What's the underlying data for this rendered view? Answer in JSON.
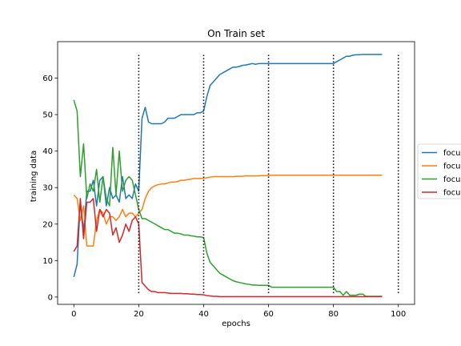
{
  "chart_data": {
    "type": "line",
    "title": "On Train set",
    "xlabel": "epochs",
    "ylabel": "training data",
    "xlim": [
      -5,
      105
    ],
    "ylim": [
      -2,
      70
    ],
    "xticks": [
      0,
      20,
      40,
      60,
      80,
      100
    ],
    "yticks": [
      0,
      10,
      20,
      30,
      40,
      50,
      60
    ],
    "grid": false,
    "legend_position": "right, partially cut off",
    "vlines": [
      20,
      40,
      60,
      80,
      100
    ],
    "x": [
      0,
      1,
      2,
      3,
      4,
      5,
      6,
      7,
      8,
      9,
      10,
      11,
      12,
      13,
      14,
      15,
      16,
      17,
      18,
      19,
      20,
      21,
      22,
      23,
      24,
      25,
      26,
      27,
      28,
      29,
      30,
      31,
      32,
      33,
      34,
      35,
      36,
      37,
      38,
      39,
      40,
      41,
      42,
      43,
      44,
      45,
      46,
      47,
      48,
      49,
      50,
      51,
      52,
      53,
      54,
      55,
      56,
      57,
      58,
      59,
      60,
      61,
      62,
      63,
      64,
      65,
      66,
      67,
      68,
      69,
      70,
      71,
      72,
      73,
      74,
      75,
      76,
      77,
      78,
      79,
      80,
      81,
      82,
      83,
      84,
      85,
      86,
      87,
      88,
      89,
      90,
      91,
      92,
      93,
      94,
      95
    ],
    "series": [
      {
        "name": "focu",
        "color": "#1f77b4",
        "values": [
          5.5,
          9,
          26,
          18,
          29,
          29,
          32,
          25,
          32,
          33,
          25,
          30,
          27,
          28,
          26,
          33,
          27,
          28,
          27,
          31,
          29,
          49,
          52,
          48,
          47.5,
          47.5,
          47.5,
          47.5,
          48,
          49,
          49,
          49,
          49.5,
          50,
          50,
          50,
          50,
          50,
          50.5,
          50.5,
          51,
          55,
          58,
          59,
          60,
          61,
          61.5,
          62,
          62.5,
          63,
          63,
          63.2,
          63.5,
          63.6,
          63.8,
          64,
          63.8,
          64,
          64,
          64,
          64,
          64,
          64,
          64,
          64,
          64,
          64,
          64,
          64,
          64,
          64,
          64,
          64,
          64,
          64,
          64,
          64,
          64,
          64,
          64,
          64,
          64.5,
          65,
          65.5,
          66,
          66,
          66.3,
          66.4,
          66.4,
          66.5,
          66.5,
          66.5,
          66.5,
          66.5,
          66.5,
          66.5
        ]
      },
      {
        "name": "focu",
        "color": "#ff7f0e",
        "values": [
          28,
          27,
          21,
          25,
          14,
          14,
          14,
          21,
          24,
          23,
          20,
          22,
          22,
          21,
          22,
          24,
          22,
          23,
          23,
          22,
          23,
          24,
          27,
          29,
          30,
          30.5,
          30.8,
          31,
          31,
          31.3,
          31.5,
          31.5,
          31.7,
          32,
          32,
          32.2,
          32.3,
          32.5,
          32.5,
          32.5,
          32.5,
          32.7,
          32.9,
          33,
          33,
          33,
          33,
          33,
          33,
          33,
          33.1,
          33.1,
          33.1,
          33.2,
          33.2,
          33.2,
          33.2,
          33.2,
          33.3,
          33.3,
          33.3,
          33.4,
          33.4,
          33.4,
          33.4,
          33.4,
          33.4,
          33.4,
          33.4,
          33.4,
          33.4,
          33.4,
          33.4,
          33.4,
          33.4,
          33.4,
          33.4,
          33.4,
          33.4,
          33.4,
          33.4,
          33.4,
          33.4,
          33.4,
          33.4,
          33.4,
          33.4,
          33.4,
          33.4,
          33.4,
          33.4,
          33.4,
          33.4,
          33.4,
          33.4,
          33.4
        ]
      },
      {
        "name": "focu",
        "color": "#2ca02c",
        "values": [
          54,
          51,
          33,
          42,
          27,
          31,
          29,
          35,
          26,
          33,
          27,
          25,
          41,
          28,
          40,
          29,
          32,
          33,
          32,
          28,
          24,
          21.5,
          21.5,
          21,
          20.5,
          20,
          19.5,
          19,
          18.5,
          18.5,
          18,
          17.5,
          17.5,
          17.3,
          17,
          17,
          16.8,
          16.7,
          16.5,
          16.5,
          16.3,
          12,
          9.5,
          8.5,
          7.5,
          6.5,
          6,
          5.5,
          5,
          4.5,
          4.2,
          4,
          3.8,
          3.6,
          3.5,
          3.3,
          3.3,
          3.2,
          3.2,
          3.2,
          3.2,
          2.7,
          2.7,
          2.7,
          2.7,
          2.7,
          2.7,
          2.7,
          2.7,
          2.7,
          2.7,
          2.7,
          2.7,
          2.7,
          2.7,
          2.7,
          2.7,
          2.7,
          2.7,
          2.7,
          2.7,
          1.5,
          1.5,
          0.5,
          1.5,
          0.5,
          0.5,
          0.5,
          0.8,
          0.8,
          0.2,
          0.2,
          0.2,
          0.2,
          0.2,
          0.2
        ]
      },
      {
        "name": "focu",
        "color": "#d62728",
        "values": [
          12.5,
          14,
          27,
          16,
          26,
          26,
          27,
          18,
          24,
          22,
          24,
          23,
          17,
          19,
          15,
          17,
          20,
          18,
          21,
          22,
          20,
          4,
          3,
          2,
          1.5,
          1.5,
          1.2,
          1.2,
          1.2,
          1.1,
          1,
          1,
          1,
          1,
          0.9,
          0.9,
          0.8,
          0.8,
          0.7,
          0.7,
          0.6,
          0.4,
          0.3,
          0.2,
          0.2,
          0.1,
          0.1,
          0.1,
          0.1,
          0.1,
          0.1,
          0.1,
          0.1,
          0.1,
          0.1,
          0.1,
          0.1,
          0.1,
          0.1,
          0.1,
          0.1,
          0.1,
          0.1,
          0.1,
          0.1,
          0.1,
          0.1,
          0.1,
          0.1,
          0.1,
          0.1,
          0.1,
          0.1,
          0.1,
          0.1,
          0.1,
          0.1,
          0.1,
          0.1,
          0.1,
          0.1,
          0.1,
          0.1,
          0.1,
          0.1,
          0.1,
          0.1,
          0.1,
          0.1,
          0.1,
          0.1,
          0.1,
          0.1,
          0.1,
          0.1,
          0.1
        ]
      }
    ]
  }
}
